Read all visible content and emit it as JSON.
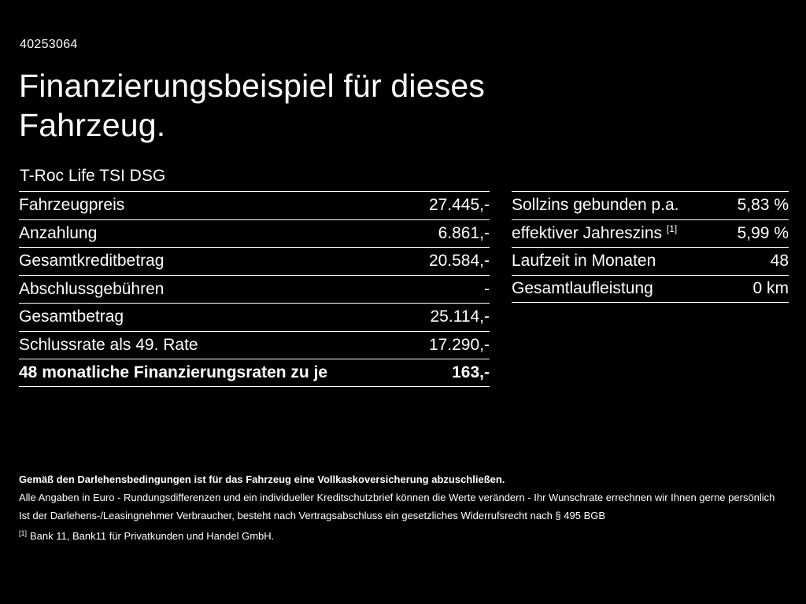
{
  "theme": {
    "background": "#000000",
    "text": "#ffffff"
  },
  "header": {
    "vehicle_id": "40253064",
    "title": "Finanzierungsbeispiel für dieses Fahrzeug.",
    "subtitle": "T-Roc Life TSI DSG"
  },
  "left_table": {
    "rows": [
      {
        "label": "Fahrzeugpreis",
        "value": "27.445,-"
      },
      {
        "label": "Anzahlung",
        "value": "6.861,-"
      },
      {
        "label": "Gesamtkreditbetrag",
        "value": "20.584,-"
      },
      {
        "label": "Abschlussgebühren",
        "value": "-"
      },
      {
        "label": "Gesamtbetrag",
        "value": "25.114,-"
      },
      {
        "label": "Schlussrate als 49. Rate",
        "value": "17.290,-"
      },
      {
        "label": "48 monatliche Finanzierungsraten zu je",
        "value": "163,-"
      }
    ]
  },
  "right_table": {
    "rows": [
      {
        "label": "Sollzins gebunden p.a.",
        "sup": "",
        "value": "5,83 %"
      },
      {
        "label": "effektiver Jahreszins ",
        "sup": "[1]",
        "value": "5,99 %"
      },
      {
        "label": "Laufzeit in Monaten",
        "sup": "",
        "value": "48"
      },
      {
        "label": "Gesamtlaufleistung",
        "sup": "",
        "value": "0 km"
      }
    ]
  },
  "footer": {
    "insurance_note": "Gemäß den Darlehensbedingungen ist für das Fahrzeug eine Vollkaskoversicherung abzuschließen.",
    "disclaimer_line1": "Alle Angaben in Euro - Rundungsdifferenzen und ein individueller Kreditschutzbrief können die Werte verändern - Ihr Wunschrate errechnen wir Ihnen gerne persönlich",
    "disclaimer_line2": "Ist der Darlehens-/Leasingnehmer Verbraucher, besteht nach Vertragsabschluss ein gesetzliches Widerrufsrecht nach § 495 BGB",
    "footnote_marker": "[1]",
    "footnote_text": "Bank 11, Bank11 für Privatkunden und Handel GmbH."
  }
}
